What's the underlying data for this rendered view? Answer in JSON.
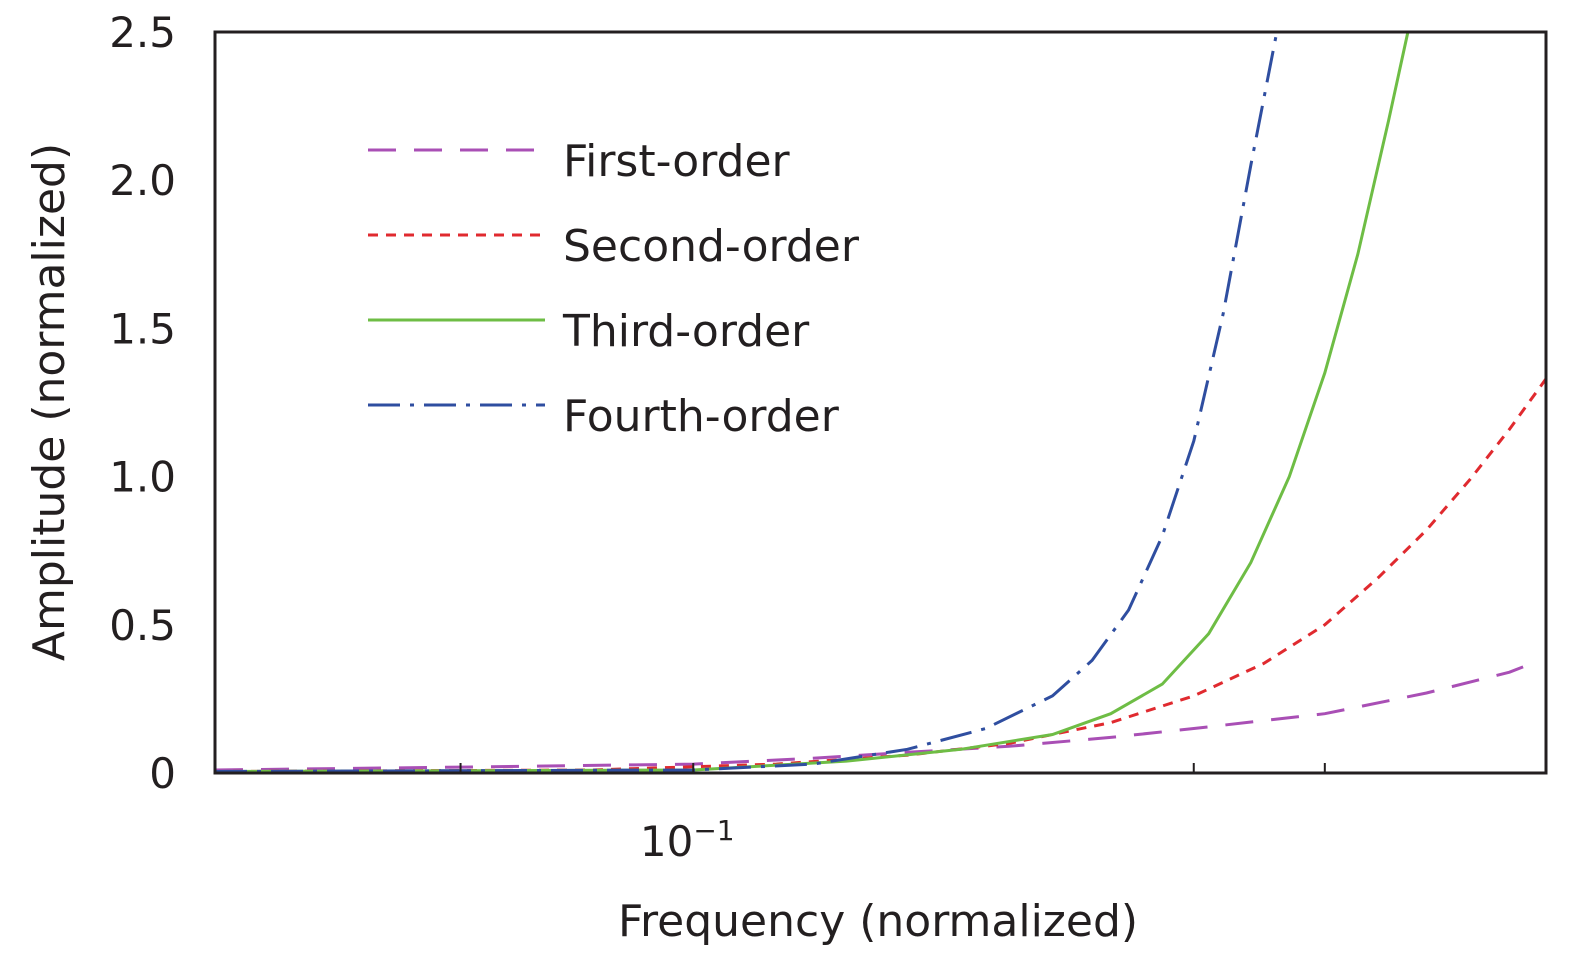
{
  "chart_data": {
    "type": "line",
    "title": "",
    "xlabel": "Frequency (normalized)",
    "ylabel": "Amplitude (normalized)",
    "x_scale": "log",
    "xlim": [
      0.035,
      0.65
    ],
    "ylim": [
      0,
      2.5
    ],
    "x_tick_label": {
      "base": "10",
      "exp": "−1",
      "value": 0.1
    },
    "x_minor_ticks": [
      0.06,
      0.3,
      0.4
    ],
    "y_ticks": [
      {
        "value": 0,
        "label": "0"
      },
      {
        "value": 0.5,
        "label": "0.5"
      },
      {
        "value": 1.0,
        "label": "1.0"
      },
      {
        "value": 1.5,
        "label": "1.5"
      },
      {
        "value": 2.0,
        "label": "2.0"
      },
      {
        "value": 2.5,
        "label": "2.5"
      }
    ],
    "grid": false,
    "legend_position": "top-left",
    "series": [
      {
        "name": "First-order",
        "color": "#a94fb5",
        "dash": "28,18",
        "x": [
          0.035,
          0.06,
          0.1,
          0.13,
          0.16,
          0.2,
          0.25,
          0.3,
          0.4,
          0.5,
          0.6,
          0.62
        ],
        "y": [
          0.01,
          0.02,
          0.03,
          0.05,
          0.07,
          0.09,
          0.12,
          0.15,
          0.2,
          0.27,
          0.34,
          0.36
        ]
      },
      {
        "name": "Second-order",
        "color": "#e02a2f",
        "dash": "10,8",
        "x": [
          0.035,
          0.08,
          0.12,
          0.16,
          0.2,
          0.25,
          0.3,
          0.35,
          0.4,
          0.45,
          0.5,
          0.55,
          0.6,
          0.65
        ],
        "y": [
          0.005,
          0.01,
          0.03,
          0.06,
          0.1,
          0.17,
          0.26,
          0.37,
          0.5,
          0.66,
          0.82,
          0.99,
          1.16,
          1.33
        ]
      },
      {
        "name": "Third-order",
        "color": "#6ebd45",
        "dash": "",
        "x": [
          0.035,
          0.1,
          0.14,
          0.18,
          0.22,
          0.25,
          0.28,
          0.31,
          0.34,
          0.37,
          0.4,
          0.43,
          0.46,
          0.48
        ],
        "y": [
          0.005,
          0.01,
          0.04,
          0.08,
          0.13,
          0.2,
          0.3,
          0.47,
          0.71,
          1.0,
          1.35,
          1.75,
          2.2,
          2.5
        ]
      },
      {
        "name": "Fourth-order",
        "color": "#2f4ea0",
        "dash": "32,10,4,10",
        "x": [
          0.035,
          0.1,
          0.13,
          0.16,
          0.19,
          0.22,
          0.24,
          0.26,
          0.28,
          0.3,
          0.32,
          0.34,
          0.36
        ],
        "y": [
          0.005,
          0.01,
          0.03,
          0.08,
          0.15,
          0.26,
          0.38,
          0.55,
          0.8,
          1.12,
          1.55,
          2.05,
          2.5
        ]
      }
    ]
  }
}
